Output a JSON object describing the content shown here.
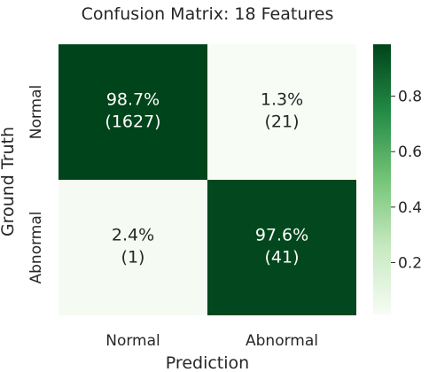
{
  "chart_data": {
    "type": "heatmap",
    "title": "Confusion Matrix: 18 Features",
    "xlabel": "Prediction",
    "ylabel": "Ground Truth",
    "x_categories": [
      "Normal",
      "Abnormal"
    ],
    "y_categories": [
      "Normal",
      "Abnormal"
    ],
    "values": [
      [
        0.987,
        0.013
      ],
      [
        0.024,
        0.976
      ]
    ],
    "annotations": [
      [
        {
          "pct": "98.7%",
          "count": "(1627)"
        },
        {
          "pct": "1.3%",
          "count": "(21)"
        }
      ],
      [
        {
          "pct": "2.4%",
          "count": "(1)"
        },
        {
          "pct": "97.6%",
          "count": "(41)"
        }
      ]
    ],
    "colorbar": {
      "ticks": [
        0.2,
        0.4,
        0.6,
        0.8
      ],
      "tick_labels": [
        "0.2",
        "0.4",
        "0.6",
        "0.8"
      ],
      "range": [
        0.013,
        0.987
      ]
    },
    "colormap": {
      "low": "#f7fcf5",
      "high": "#00441b",
      "name": "Greens"
    },
    "grid": false
  }
}
